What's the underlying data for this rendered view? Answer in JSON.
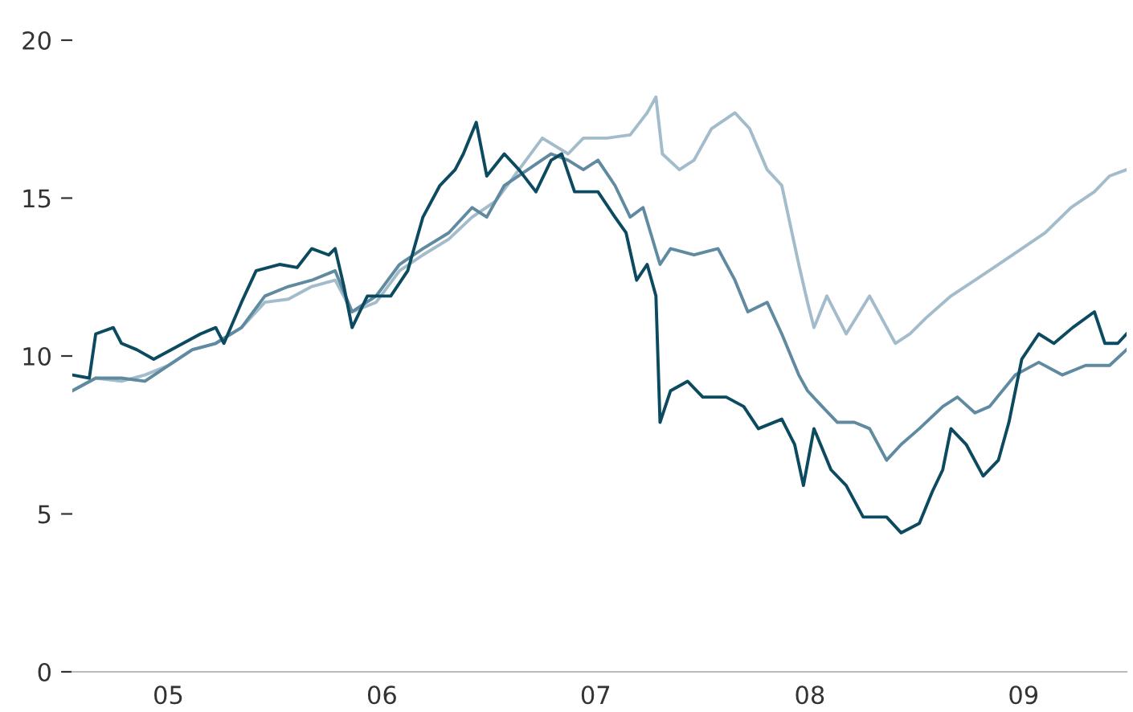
{
  "chart_data": {
    "type": "line",
    "xlim": [
      "2005-01-19",
      "2009-12-25"
    ],
    "ylim": [
      0,
      20
    ],
    "xticks": [
      {
        "value": "2005-07-02",
        "label": "05"
      },
      {
        "value": "2006-07-02",
        "label": "06"
      },
      {
        "value": "2007-07-02",
        "label": "07"
      },
      {
        "value": "2008-07-02",
        "label": "08"
      },
      {
        "value": "2009-07-02",
        "label": "09"
      }
    ],
    "yticks": [
      0,
      5,
      10,
      15,
      20
    ],
    "grid": false,
    "legend": false,
    "line_style": "solid",
    "marker": "none",
    "series": [
      {
        "color": "#a3bccb",
        "x": [
          "2005-01-19",
          "2005-02-28",
          "2005-04-13",
          "2005-05-23",
          "2005-07-02",
          "2005-08-12",
          "2005-09-21",
          "2005-11-04",
          "2005-12-14",
          "2006-01-23",
          "2006-03-04",
          "2006-04-13",
          "2006-05-12",
          "2006-06-22",
          "2006-08-01",
          "2006-09-10",
          "2006-10-24",
          "2006-12-03",
          "2007-01-12",
          "2007-02-21",
          "2007-04-02",
          "2007-05-16",
          "2007-06-11",
          "2007-07-21",
          "2007-08-30",
          "2007-09-28",
          "2007-10-13",
          "2007-10-24",
          "2007-11-22",
          "2007-12-17",
          "2008-01-16",
          "2008-02-25",
          "2008-03-21",
          "2008-04-20",
          "2008-05-15",
          "2008-06-13",
          "2008-06-28",
          "2008-07-09",
          "2008-07-31",
          "2008-09-02",
          "2008-10-12",
          "2008-11-25",
          "2008-12-20",
          "2009-01-16",
          "2009-02-28",
          "2009-04-10",
          "2009-05-20",
          "2009-06-29",
          "2009-08-08",
          "2009-09-21",
          "2009-10-31",
          "2009-11-26",
          "2009-12-25"
        ],
        "values": [
          8.9,
          9.3,
          9.2,
          9.4,
          9.7,
          10.2,
          10.4,
          10.9,
          11.7,
          11.8,
          12.2,
          12.4,
          11.4,
          11.7,
          12.7,
          13.2,
          13.7,
          14.4,
          14.9,
          15.9,
          16.9,
          16.4,
          16.9,
          16.9,
          17.0,
          17.7,
          18.2,
          16.4,
          15.9,
          16.2,
          17.2,
          17.7,
          17.2,
          15.9,
          15.4,
          12.9,
          11.7,
          10.9,
          11.9,
          10.7,
          11.9,
          10.4,
          10.7,
          11.2,
          11.9,
          12.4,
          12.9,
          13.4,
          13.9,
          14.7,
          15.2,
          15.7,
          15.9
        ]
      },
      {
        "color": "#5f8aa0",
        "x": [
          "2005-01-19",
          "2005-02-28",
          "2005-04-13",
          "2005-05-23",
          "2005-07-02",
          "2005-08-12",
          "2005-09-21",
          "2005-11-04",
          "2005-12-14",
          "2006-01-23",
          "2006-03-04",
          "2006-04-13",
          "2006-05-12",
          "2006-06-22",
          "2006-08-01",
          "2006-09-10",
          "2006-10-24",
          "2006-12-03",
          "2006-12-28",
          "2007-01-27",
          "2007-03-08",
          "2007-04-17",
          "2007-05-16",
          "2007-06-11",
          "2007-07-06",
          "2007-08-04",
          "2007-08-30",
          "2007-09-21",
          "2007-10-20",
          "2007-11-07",
          "2007-12-17",
          "2008-01-27",
          "2008-02-25",
          "2008-03-18",
          "2008-04-20",
          "2008-05-15",
          "2008-06-13",
          "2008-06-28",
          "2008-07-23",
          "2008-08-18",
          "2008-09-16",
          "2008-10-12",
          "2008-11-10",
          "2008-12-05",
          "2009-01-05",
          "2009-02-14",
          "2009-03-11",
          "2009-04-10",
          "2009-05-05",
          "2009-06-18",
          "2009-07-28",
          "2009-09-06",
          "2009-10-16",
          "2009-11-26",
          "2009-12-25"
        ],
        "values": [
          8.9,
          9.3,
          9.3,
          9.2,
          9.7,
          10.2,
          10.4,
          10.9,
          11.9,
          12.2,
          12.4,
          12.7,
          11.4,
          11.9,
          12.9,
          13.4,
          13.9,
          14.7,
          14.4,
          15.4,
          15.9,
          16.4,
          16.2,
          15.9,
          16.2,
          15.4,
          14.4,
          14.7,
          12.9,
          13.4,
          13.2,
          13.4,
          12.4,
          11.4,
          11.7,
          10.7,
          9.4,
          8.9,
          8.4,
          7.9,
          7.9,
          7.7,
          6.7,
          7.2,
          7.7,
          8.4,
          8.7,
          8.2,
          8.4,
          9.4,
          9.8,
          9.4,
          9.7,
          9.7,
          10.2
        ]
      },
      {
        "color": "#0b4a5f",
        "x": [
          "2005-01-19",
          "2005-02-17",
          "2005-02-28",
          "2005-03-30",
          "2005-04-13",
          "2005-05-09",
          "2005-06-07",
          "2005-07-17",
          "2005-08-26",
          "2005-09-21",
          "2005-10-05",
          "2005-11-04",
          "2005-11-29",
          "2006-01-08",
          "2006-02-07",
          "2006-03-04",
          "2006-04-02",
          "2006-04-13",
          "2006-04-28",
          "2006-05-12",
          "2006-06-07",
          "2006-07-17",
          "2006-08-15",
          "2006-09-10",
          "2006-10-09",
          "2006-11-04",
          "2006-11-18",
          "2006-12-10",
          "2006-12-28",
          "2007-01-27",
          "2007-02-21",
          "2007-03-22",
          "2007-04-17",
          "2007-05-05",
          "2007-05-27",
          "2007-07-06",
          "2007-08-04",
          "2007-08-23",
          "2007-09-10",
          "2007-09-28",
          "2007-10-13",
          "2007-10-20",
          "2007-11-07",
          "2007-12-06",
          "2008-01-01",
          "2008-02-10",
          "2008-03-11",
          "2008-04-05",
          "2008-05-15",
          "2008-06-06",
          "2008-06-21",
          "2008-07-09",
          "2008-08-07",
          "2008-09-02",
          "2008-10-01",
          "2008-11-10",
          "2008-12-05",
          "2009-01-05",
          "2009-01-27",
          "2009-02-14",
          "2009-02-28",
          "2009-03-26",
          "2009-04-24",
          "2009-05-20",
          "2009-06-07",
          "2009-06-29",
          "2009-07-28",
          "2009-08-23",
          "2009-09-24",
          "2009-10-31",
          "2009-11-18",
          "2009-12-10",
          "2009-12-25"
        ],
        "values": [
          9.4,
          9.3,
          10.7,
          10.9,
          10.4,
          10.2,
          9.9,
          10.3,
          10.7,
          10.9,
          10.4,
          11.7,
          12.7,
          12.9,
          12.8,
          13.4,
          13.2,
          13.4,
          12.2,
          10.9,
          11.9,
          11.9,
          12.7,
          14.4,
          15.4,
          15.9,
          16.4,
          17.4,
          15.7,
          16.4,
          15.9,
          15.2,
          16.2,
          16.4,
          15.2,
          15.2,
          14.4,
          13.9,
          12.4,
          12.9,
          11.9,
          7.9,
          8.9,
          9.2,
          8.7,
          8.7,
          8.4,
          7.7,
          8.0,
          7.2,
          5.9,
          7.7,
          6.4,
          5.9,
          4.9,
          4.9,
          4.4,
          4.7,
          5.7,
          6.4,
          7.7,
          7.2,
          6.2,
          6.7,
          7.9,
          9.9,
          10.7,
          10.4,
          10.9,
          11.4,
          10.4,
          10.4,
          10.7
        ]
      }
    ]
  }
}
